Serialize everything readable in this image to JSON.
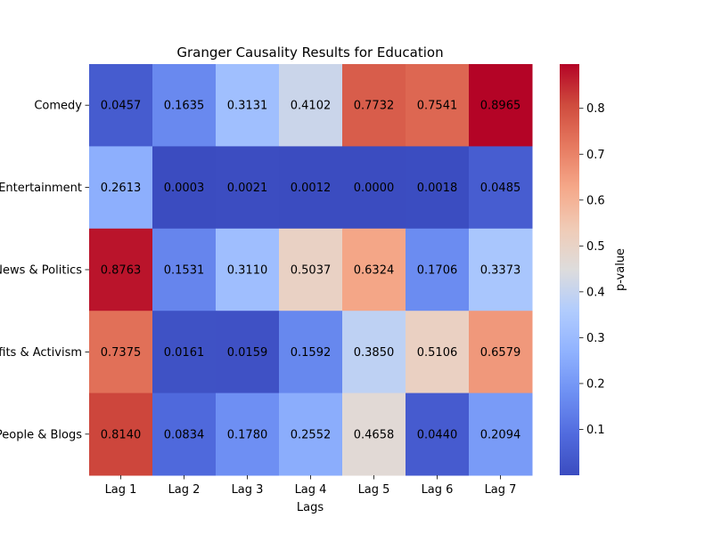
{
  "chart_data": {
    "type": "heatmap",
    "title": "Granger Causality Results for Education",
    "xlabel": "Lags",
    "ylabel": "",
    "x_categories": [
      "Lag 1",
      "Lag 2",
      "Lag 3",
      "Lag 4",
      "Lag 5",
      "Lag 6",
      "Lag 7"
    ],
    "y_categories": [
      "Comedy",
      "Entertainment",
      "News & Politics",
      "Nonprofits & Activism",
      "People & Blogs"
    ],
    "values": [
      [
        0.0457,
        0.1635,
        0.3131,
        0.4102,
        0.7732,
        0.7541,
        0.8965
      ],
      [
        0.2613,
        0.0003,
        0.0021,
        0.0012,
        0.0,
        0.0018,
        0.0485
      ],
      [
        0.8763,
        0.1531,
        0.311,
        0.5037,
        0.6324,
        0.1706,
        0.3373
      ],
      [
        0.7375,
        0.0161,
        0.0159,
        0.1592,
        0.385,
        0.5106,
        0.6579
      ],
      [
        0.814,
        0.0834,
        0.178,
        0.2552,
        0.4658,
        0.044,
        0.2094
      ]
    ],
    "colormap": "coolwarm",
    "vmin": 0.0,
    "vmax": 0.8965,
    "colorbar": {
      "label": "p-value",
      "ticks": [
        "0.1",
        "0.2",
        "0.3",
        "0.4",
        "0.5",
        "0.6",
        "0.7",
        "0.8"
      ]
    },
    "grid": false
  }
}
